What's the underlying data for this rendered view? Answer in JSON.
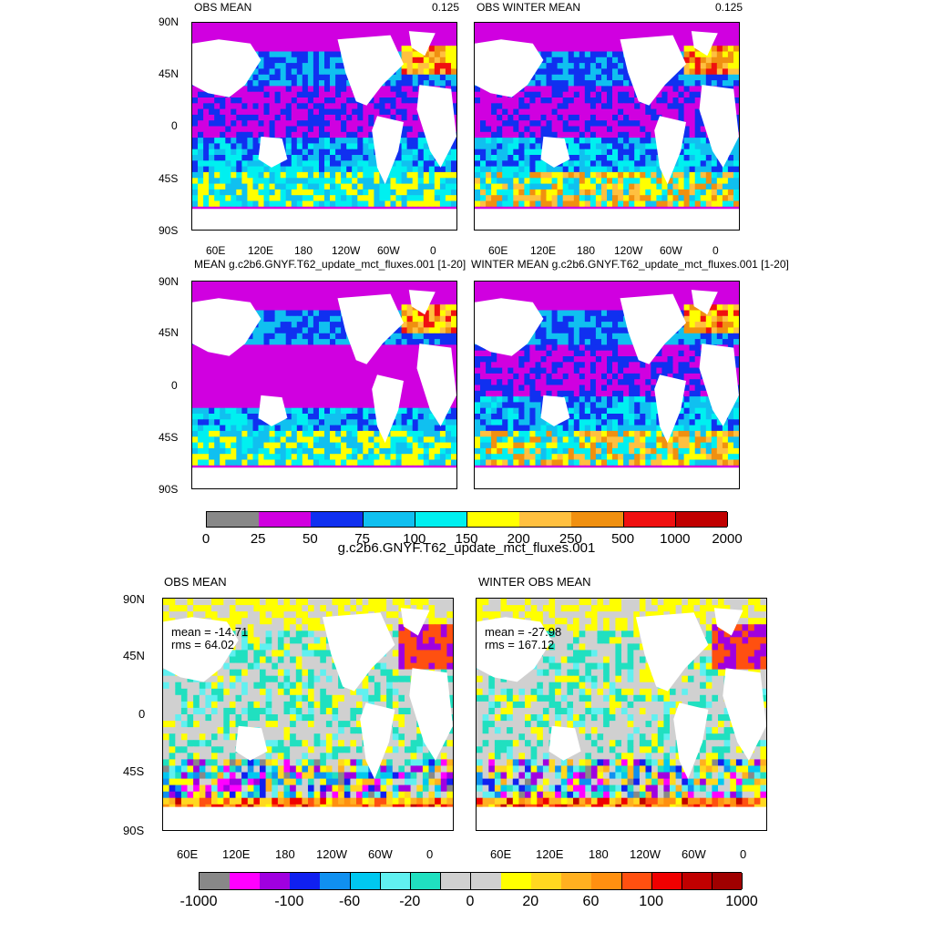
{
  "top_section": {
    "panels": [
      {
        "id": "obs-mean",
        "title": "OBS MEAN",
        "right_label": "0.125"
      },
      {
        "id": "obs-winter-mean",
        "title": "OBS WINTER MEAN",
        "right_label": "0.125"
      },
      {
        "id": "model-mean",
        "title": "MEAN g.c2b6.GNYF.T62_update_mct_fluxes.001 [1-20]",
        "right_label": ""
      },
      {
        "id": "model-winter-mean",
        "title": "WINTER MEAN g.c2b6.GNYF.T62_update_mct_fluxes.001 [1-20]",
        "right_label": ""
      }
    ],
    "lat_ticks": [
      "90N",
      "45N",
      "0",
      "45S",
      "90S"
    ],
    "lon_ticks": [
      "60E",
      "120E",
      "180",
      "120W",
      "60W",
      "0"
    ],
    "colorbar": {
      "labels": [
        "0",
        "25",
        "50",
        "75",
        "100",
        "150",
        "200",
        "250",
        "500",
        "1000",
        "2000"
      ],
      "colors": [
        "#888888",
        "#d000e0",
        "#1030f0",
        "#10c0f0",
        "#00f0f0",
        "#ffff00",
        "#ffc040",
        "#f09010",
        "#f01010",
        "#c00000"
      ],
      "title": "g.c2b6.GNYF.T62_update_mct_fluxes.001"
    }
  },
  "bottom_section": {
    "panels": [
      {
        "id": "diff-obs-mean",
        "title": "OBS MEAN",
        "mean": "mean = -14.71",
        "rms": "rms = 64.02"
      },
      {
        "id": "diff-winter-obs-mean",
        "title": "WINTER OBS MEAN",
        "mean": "mean = -27.98",
        "rms": "rms = 167.12"
      }
    ],
    "lat_ticks": [
      "90N",
      "45N",
      "0",
      "45S",
      "90S"
    ],
    "lon_ticks": [
      "60E",
      "120E",
      "180",
      "120W",
      "60W",
      "0"
    ],
    "colorbar": {
      "labels": [
        "-1000",
        "-100",
        "-60",
        "-20",
        "0",
        "20",
        "60",
        "100",
        "1000"
      ],
      "colors": [
        "#888888",
        "#ff00ff",
        "#a000e0",
        "#1020f0",
        "#1090f0",
        "#00c8f0",
        "#60f0f0",
        "#20e0c0",
        "#d0d0d0",
        "#d0d0d0",
        "#ffff00",
        "#ffd820",
        "#ffb020",
        "#ff9010",
        "#ff5010",
        "#f00000",
        "#c00000",
        "#a00000"
      ]
    }
  }
}
